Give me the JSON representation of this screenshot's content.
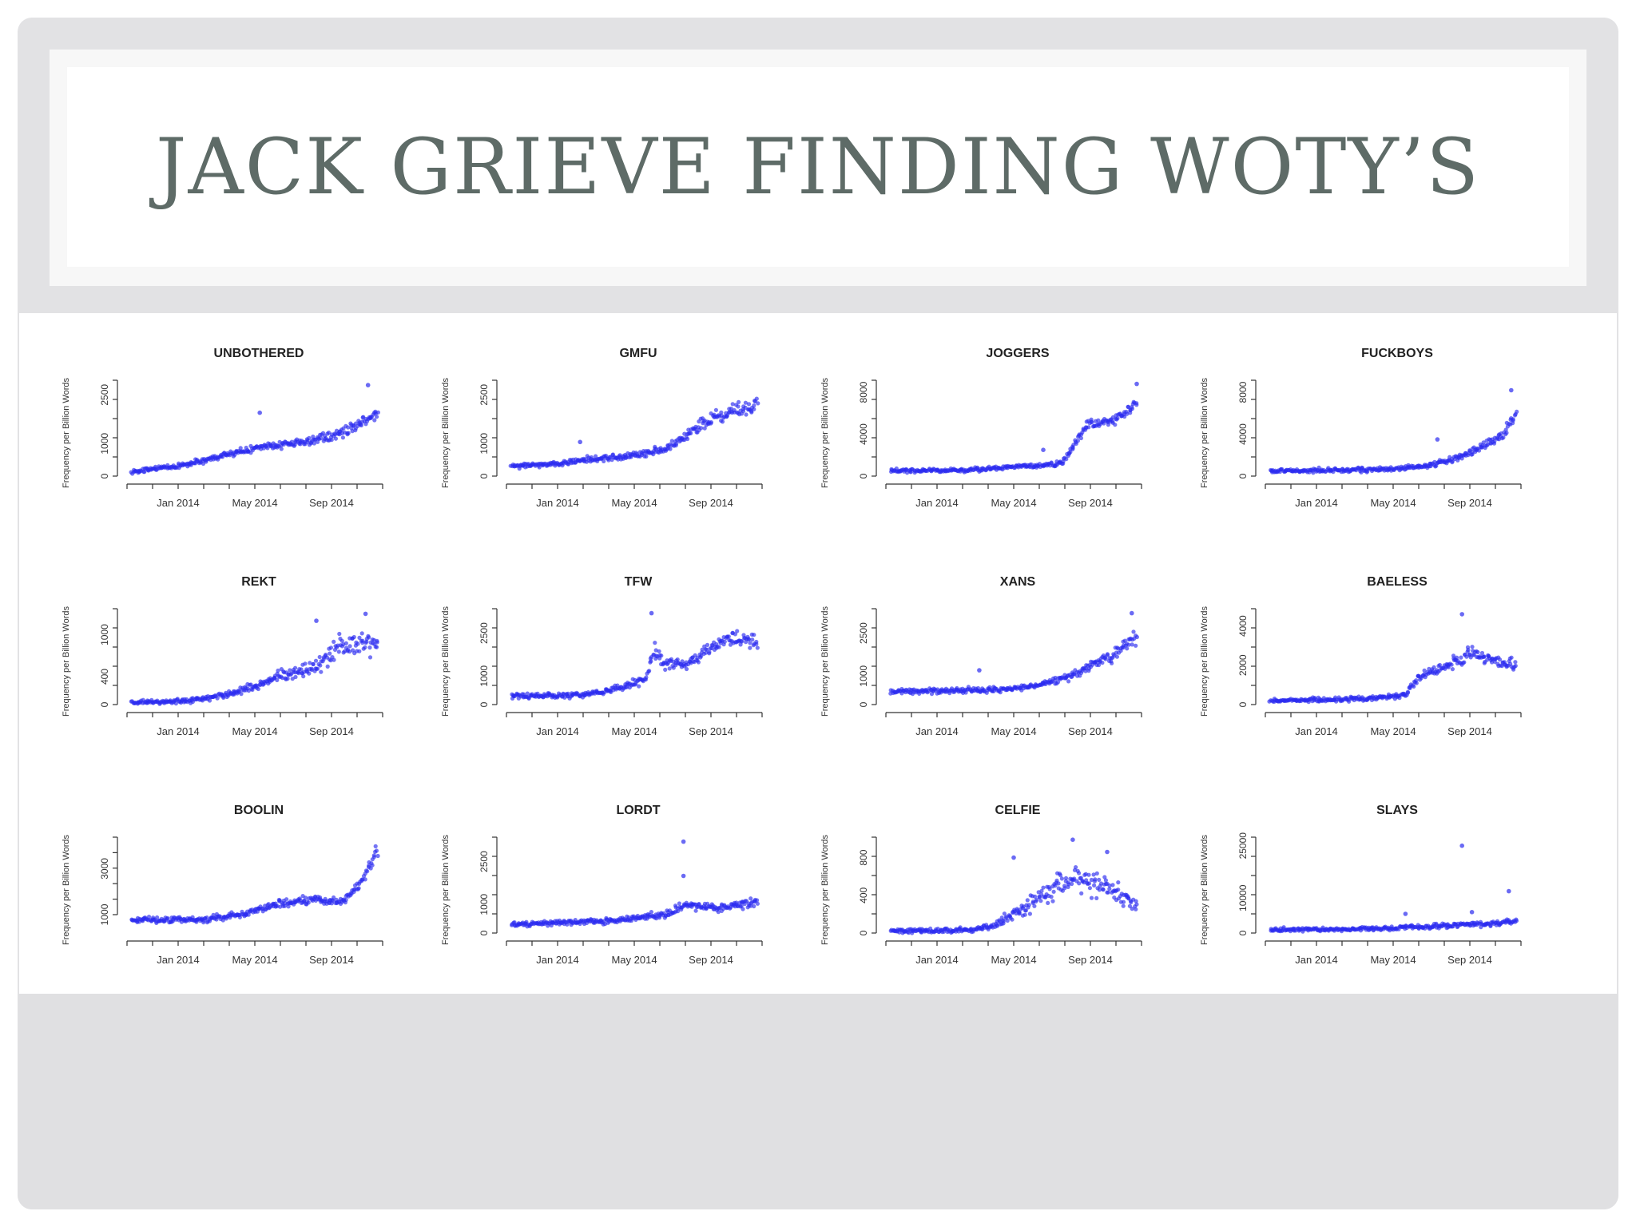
{
  "slide": {
    "title": "JACK GRIEVE FINDING WOTY’S",
    "colors": {
      "background": "#e2e2e4",
      "title": "#5e6b67",
      "points": "#2b2bef"
    }
  },
  "chart_data": [
    {
      "type": "scatter",
      "title": "UNBOTHERED",
      "ylabel": "Frequency per Billion Words",
      "x_ticks": [
        "Jan 2014",
        "May 2014",
        "Sep 2014"
      ],
      "y_ticks": [
        0,
        1000,
        2500
      ],
      "ylim": [
        0,
        2900
      ],
      "shape": [
        [
          0,
          150
        ],
        [
          0.1,
          230
        ],
        [
          0.2,
          320
        ],
        [
          0.3,
          500
        ],
        [
          0.4,
          700
        ],
        [
          0.5,
          850
        ],
        [
          0.6,
          950
        ],
        [
          0.7,
          1050
        ],
        [
          0.8,
          1200
        ],
        [
          0.9,
          1500
        ],
        [
          1,
          2000
        ]
      ],
      "noise": 0.1,
      "outliers": [
        [
          0.52,
          1950
        ],
        [
          0.96,
          2800
        ]
      ]
    },
    {
      "type": "scatter",
      "title": "GMFU",
      "ylabel": "Frequency per Billion Words",
      "x_ticks": [
        "Jan 2014",
        "May 2014",
        "Sep 2014"
      ],
      "y_ticks": [
        0,
        1000,
        2500
      ],
      "ylim": [
        0,
        2900
      ],
      "shape": [
        [
          0,
          300
        ],
        [
          0.2,
          380
        ],
        [
          0.3,
          500
        ],
        [
          0.45,
          600
        ],
        [
          0.55,
          700
        ],
        [
          0.65,
          900
        ],
        [
          0.75,
          1500
        ],
        [
          0.85,
          1900
        ],
        [
          1,
          2200
        ]
      ],
      "noise": 0.12,
      "outliers": [
        [
          0.28,
          1050
        ]
      ]
    },
    {
      "type": "scatter",
      "title": "JOGGERS",
      "ylabel": "Frequency per Billion Words",
      "x_ticks": [
        "Jan 2014",
        "May 2014",
        "Sep 2014"
      ],
      "y_ticks": [
        0,
        4000,
        8000
      ],
      "ylim": [
        0,
        9000
      ],
      "shape": [
        [
          0,
          500
        ],
        [
          0.3,
          550
        ],
        [
          0.5,
          900
        ],
        [
          0.62,
          1000
        ],
        [
          0.7,
          1300
        ],
        [
          0.76,
          3500
        ],
        [
          0.8,
          5000
        ],
        [
          0.9,
          5200
        ],
        [
          1,
          7000
        ]
      ],
      "noise": 0.08,
      "outliers": [
        [
          0.62,
          2500
        ],
        [
          1,
          8800
        ]
      ]
    },
    {
      "type": "scatter",
      "title": "FUCKBOYS",
      "ylabel": "Frequency per Billion Words",
      "x_ticks": [
        "Jan 2014",
        "May 2014",
        "Sep 2014"
      ],
      "y_ticks": [
        0,
        4000,
        8000
      ],
      "ylim": [
        0,
        9000
      ],
      "shape": [
        [
          0,
          500
        ],
        [
          0.3,
          550
        ],
        [
          0.5,
          700
        ],
        [
          0.65,
          1000
        ],
        [
          0.75,
          1700
        ],
        [
          0.85,
          2600
        ],
        [
          0.95,
          4000
        ],
        [
          1,
          6000
        ]
      ],
      "noise": 0.12,
      "outliers": [
        [
          0.68,
          3500
        ],
        [
          0.98,
          8200
        ]
      ]
    },
    {
      "type": "scatter",
      "title": "REKT",
      "ylabel": "Frequency per Billion Words",
      "x_ticks": [
        "Jan 2014",
        "May 2014",
        "Sep 2014"
      ],
      "y_ticks": [
        0,
        400,
        1000
      ],
      "ylim": [
        0,
        1350
      ],
      "shape": [
        [
          0,
          30
        ],
        [
          0.2,
          50
        ],
        [
          0.3,
          80
        ],
        [
          0.45,
          200
        ],
        [
          0.6,
          400
        ],
        [
          0.75,
          550
        ],
        [
          0.85,
          850
        ],
        [
          1,
          900
        ]
      ],
      "noise": 0.22,
      "outliers": [
        [
          0.75,
          1200
        ],
        [
          0.95,
          1300
        ]
      ]
    },
    {
      "type": "scatter",
      "title": "TFW",
      "ylabel": "Frequency per Billion Words",
      "x_ticks": [
        "Jan 2014",
        "May 2014",
        "Sep 2014"
      ],
      "y_ticks": [
        0,
        1000,
        2500
      ],
      "ylim": [
        0,
        3300
      ],
      "shape": [
        [
          0,
          300
        ],
        [
          0.3,
          350
        ],
        [
          0.45,
          600
        ],
        [
          0.55,
          900
        ],
        [
          0.58,
          2000
        ],
        [
          0.62,
          1500
        ],
        [
          0.7,
          1400
        ],
        [
          0.8,
          1900
        ],
        [
          0.9,
          2400
        ],
        [
          1,
          2200
        ]
      ],
      "noise": 0.15,
      "outliers": [
        [
          0.57,
          3200
        ]
      ]
    },
    {
      "type": "scatter",
      "title": "XANS",
      "ylabel": "Frequency per Billion Words",
      "x_ticks": [
        "Jan 2014",
        "May 2014",
        "Sep 2014"
      ],
      "y_ticks": [
        0,
        1000,
        2500
      ],
      "ylim": [
        0,
        3300
      ],
      "shape": [
        [
          0,
          450
        ],
        [
          0.3,
          500
        ],
        [
          0.5,
          550
        ],
        [
          0.6,
          700
        ],
        [
          0.7,
          900
        ],
        [
          0.8,
          1300
        ],
        [
          0.9,
          1700
        ],
        [
          1,
          2400
        ]
      ],
      "noise": 0.12,
      "outliers": [
        [
          0.36,
          1200
        ],
        [
          0.98,
          3200
        ]
      ]
    },
    {
      "type": "scatter",
      "title": "BAELESS",
      "ylabel": "Frequency per Billion Words",
      "x_ticks": [
        "Jan 2014",
        "May 2014",
        "Sep 2014"
      ],
      "y_ticks": [
        0,
        2000,
        4000
      ],
      "ylim": [
        0,
        4800
      ],
      "shape": [
        [
          0,
          200
        ],
        [
          0.4,
          300
        ],
        [
          0.55,
          500
        ],
        [
          0.6,
          1300
        ],
        [
          0.72,
          2000
        ],
        [
          0.82,
          2600
        ],
        [
          0.9,
          2300
        ],
        [
          1,
          2000
        ]
      ],
      "noise": 0.15,
      "outliers": [
        [
          0.78,
          4600
        ]
      ]
    },
    {
      "type": "scatter",
      "title": "BOOLIN",
      "ylabel": "Frequency per Billion Words",
      "x_ticks": [
        "Jan 2014",
        "May 2014",
        "Sep 2014"
      ],
      "y_ticks": [
        1000,
        3000
      ],
      "ylim": [
        200,
        4300
      ],
      "shape": [
        [
          0,
          750
        ],
        [
          0.3,
          800
        ],
        [
          0.45,
          1000
        ],
        [
          0.6,
          1500
        ],
        [
          0.75,
          1700
        ],
        [
          0.85,
          1500
        ],
        [
          0.92,
          2200
        ],
        [
          1,
          3800
        ]
      ],
      "noise": 0.1,
      "outliers": []
    },
    {
      "type": "scatter",
      "title": "LORDT",
      "ylabel": "Frequency per Billion Words",
      "x_ticks": [
        "Jan 2014",
        "May 2014",
        "Sep 2014"
      ],
      "y_ticks": [
        0,
        1000,
        2500
      ],
      "ylim": [
        0,
        3300
      ],
      "shape": [
        [
          0,
          300
        ],
        [
          0.3,
          400
        ],
        [
          0.5,
          500
        ],
        [
          0.65,
          700
        ],
        [
          0.7,
          1000
        ],
        [
          0.85,
          900
        ],
        [
          1,
          1100
        ]
      ],
      "noise": 0.15,
      "outliers": [
        [
          0.7,
          3200
        ],
        [
          0.7,
          2000
        ]
      ]
    },
    {
      "type": "scatter",
      "title": "CELFIE",
      "ylabel": "Frequency per Billion Words",
      "x_ticks": [
        "Jan 2014",
        "May 2014",
        "Sep 2014"
      ],
      "y_ticks": [
        0,
        400,
        800
      ],
      "ylim": [
        0,
        1000
      ],
      "shape": [
        [
          0,
          20
        ],
        [
          0.3,
          30
        ],
        [
          0.4,
          60
        ],
        [
          0.5,
          200
        ],
        [
          0.6,
          350
        ],
        [
          0.7,
          550
        ],
        [
          0.8,
          600
        ],
        [
          0.9,
          450
        ],
        [
          1,
          300
        ]
      ],
      "noise": 0.35,
      "outliers": [
        [
          0.5,
          800
        ],
        [
          0.74,
          990
        ],
        [
          0.88,
          860
        ]
      ]
    },
    {
      "type": "scatter",
      "title": "SLAYS",
      "ylabel": "Frequency per Billion Words",
      "x_ticks": [
        "Jan 2014",
        "May 2014",
        "Sep 2014"
      ],
      "y_ticks": [
        0,
        10000,
        25000
      ],
      "ylim": [
        0,
        27000
      ],
      "shape": [
        [
          0,
          900
        ],
        [
          0.4,
          1200
        ],
        [
          0.7,
          2000
        ],
        [
          0.9,
          2600
        ],
        [
          1,
          3500
        ]
      ],
      "noise": 0.15,
      "outliers": [
        [
          0.78,
          25000
        ],
        [
          0.97,
          12000
        ],
        [
          0.55,
          5500
        ],
        [
          0.82,
          6000
        ]
      ]
    }
  ]
}
